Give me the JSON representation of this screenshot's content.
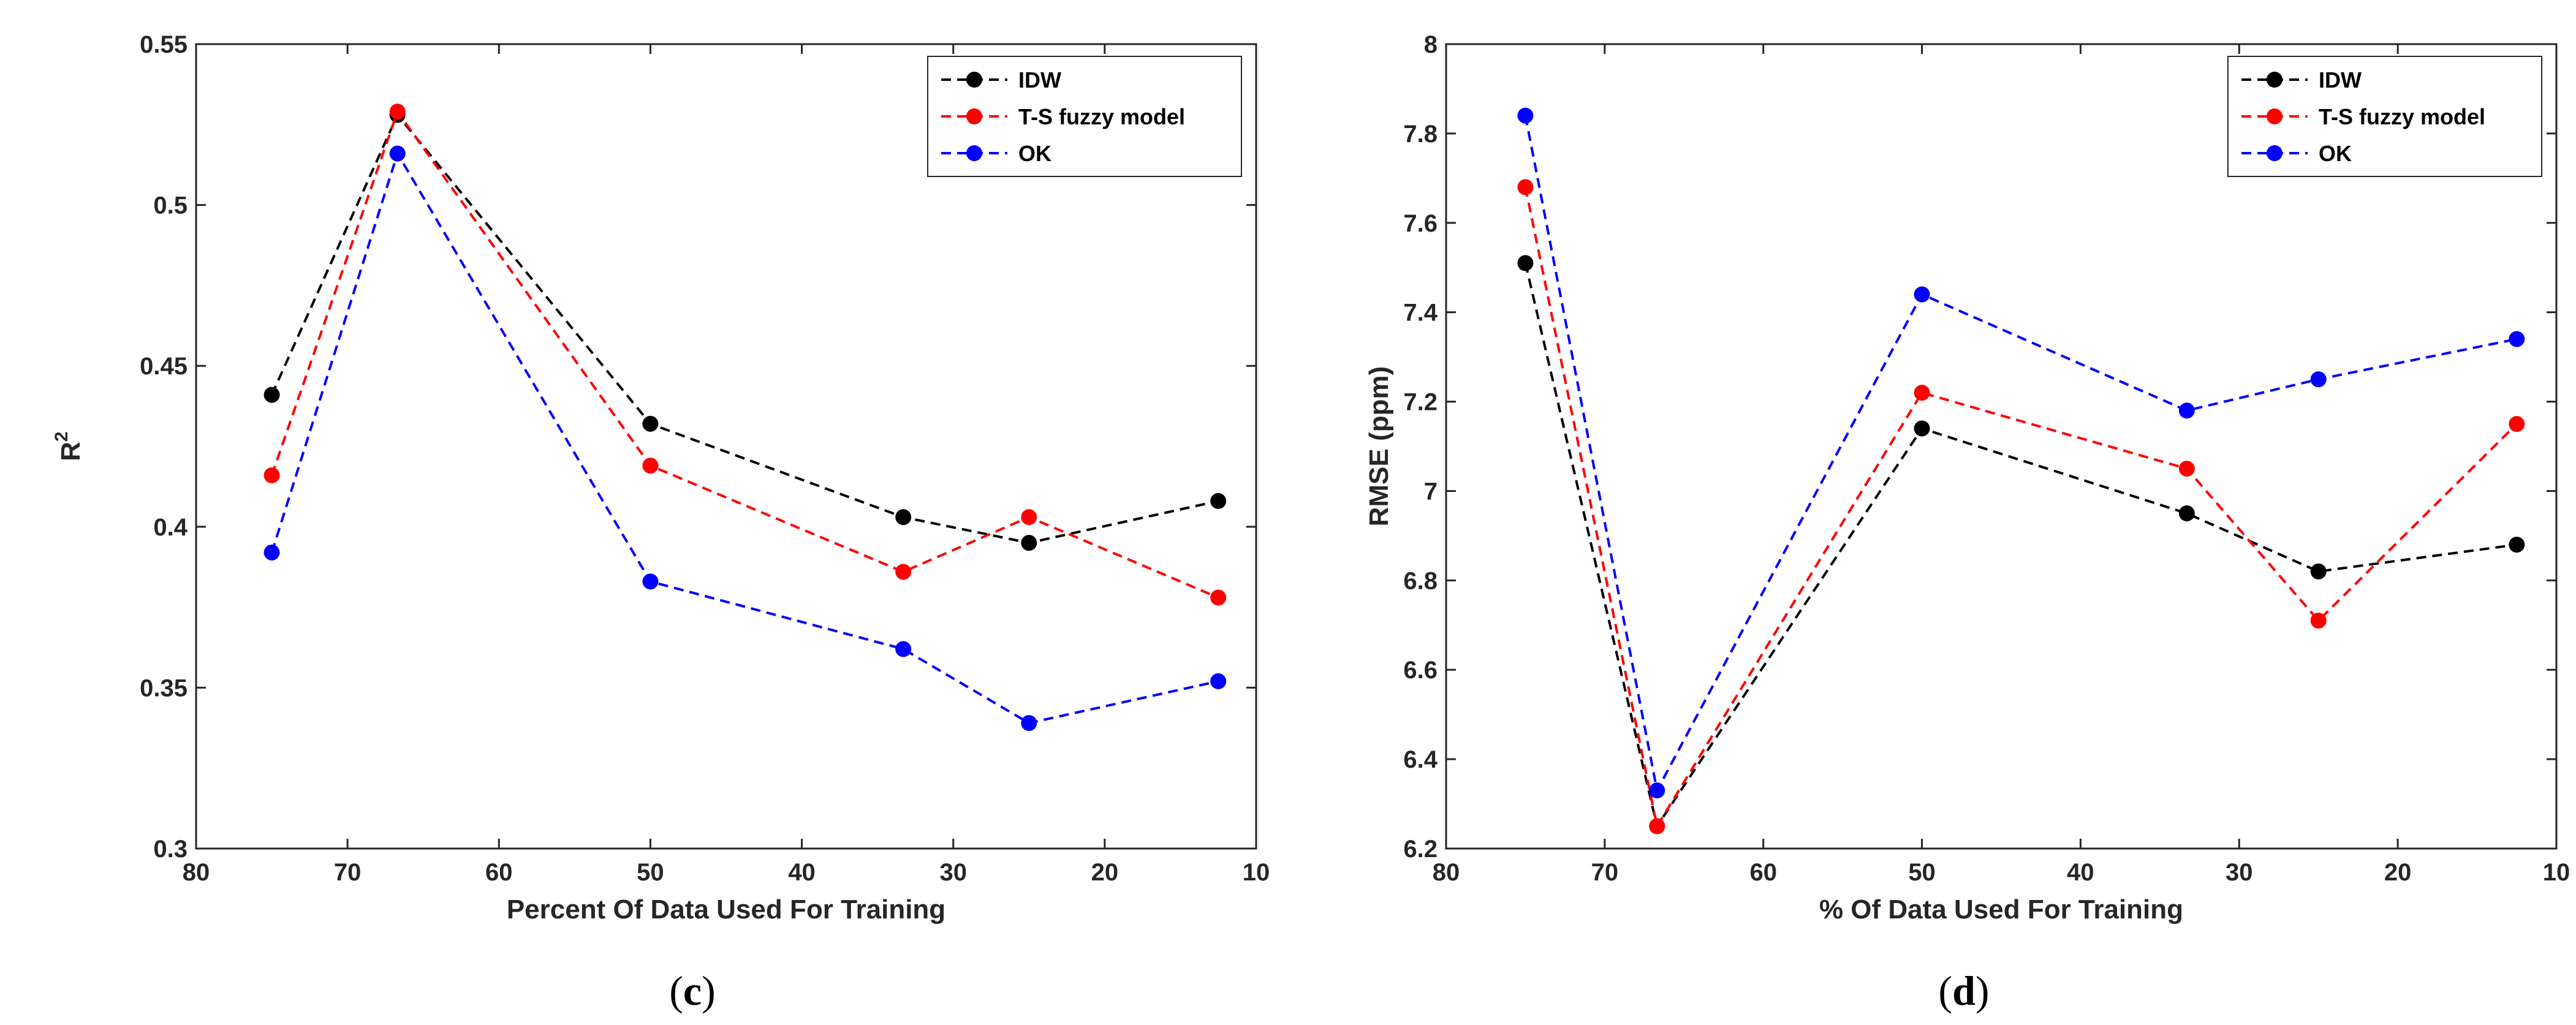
{
  "chart_data": [
    {
      "type": "line",
      "panel_label": "c",
      "xlabel": "Percent Of Data Used For Training",
      "ylabel": "R",
      "ylabel_superscript": "2",
      "xlim": [
        80,
        10
      ],
      "ylim": [
        0.3,
        0.55
      ],
      "x_ticks": [
        80,
        70,
        60,
        50,
        40,
        30,
        20,
        10
      ],
      "y_ticks": [
        0.3,
        0.35,
        0.4,
        0.45,
        0.5,
        0.55
      ],
      "x": [
        75,
        66.7,
        50,
        33.3,
        25,
        12.5
      ],
      "legend_position": "top-right",
      "series": [
        {
          "name": "IDW",
          "color": "#000000",
          "values": [
            0.441,
            0.528,
            0.432,
            0.403,
            0.395,
            0.408
          ]
        },
        {
          "name": "T-S fuzzy model",
          "color": "#ff0000",
          "values": [
            0.416,
            0.529,
            0.419,
            0.386,
            0.403,
            0.378
          ]
        },
        {
          "name": "OK",
          "color": "#0000ff",
          "values": [
            0.392,
            0.516,
            0.383,
            0.362,
            0.339,
            0.352
          ]
        }
      ]
    },
    {
      "type": "line",
      "panel_label": "d",
      "xlabel": "% Of Data Used For Training",
      "ylabel": "RMSE (ppm)",
      "xlim": [
        80,
        10
      ],
      "ylim": [
        6.2,
        8
      ],
      "x_ticks": [
        80,
        70,
        60,
        50,
        40,
        30,
        20,
        10
      ],
      "y_ticks": [
        6.2,
        6.4,
        6.6,
        6.8,
        7,
        7.2,
        7.4,
        7.6,
        7.8,
        8
      ],
      "x": [
        75,
        66.7,
        50,
        33.3,
        25,
        12.5
      ],
      "legend_position": "top-right",
      "series": [
        {
          "name": "IDW",
          "color": "#000000",
          "values": [
            7.51,
            6.25,
            7.14,
            6.95,
            6.82,
            6.88
          ]
        },
        {
          "name": "T-S fuzzy model",
          "color": "#ff0000",
          "values": [
            7.68,
            6.25,
            7.22,
            7.05,
            6.71,
            7.15
          ]
        },
        {
          "name": "OK",
          "color": "#0000ff",
          "values": [
            7.84,
            6.33,
            7.44,
            7.18,
            7.25,
            7.34
          ]
        }
      ]
    }
  ]
}
